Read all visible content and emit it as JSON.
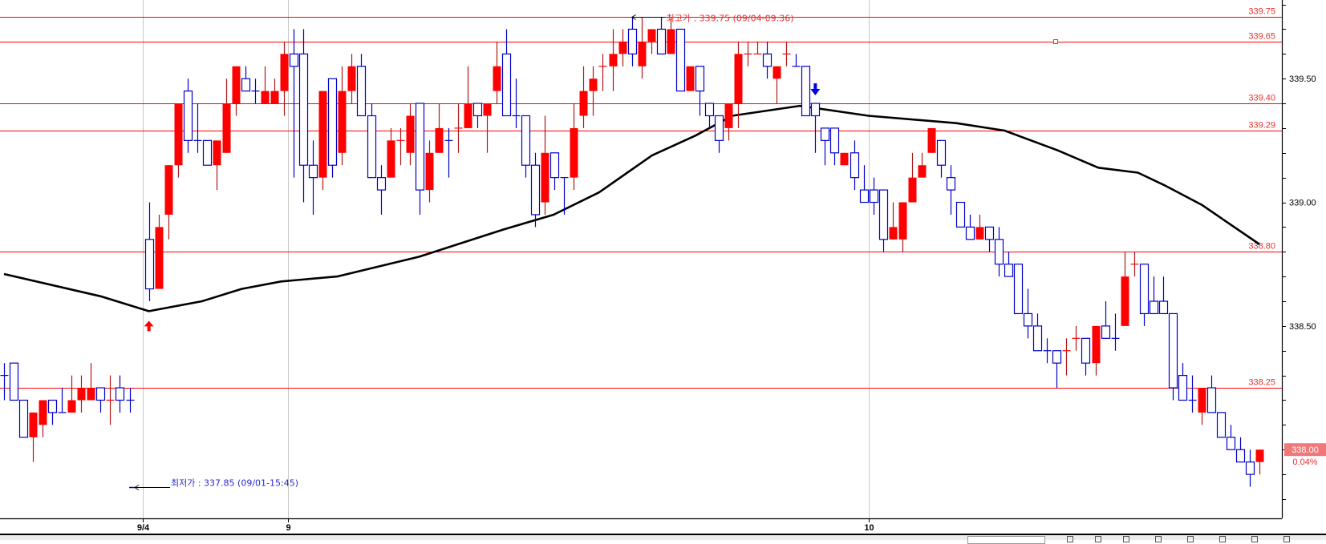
{
  "chart_data": {
    "type": "candlestick",
    "title": "",
    "ylim": [
      337.72,
      339.82
    ],
    "y_ticks": [
      "339.50",
      "339.00",
      "338.50"
    ],
    "y_tick_values": [
      339.5,
      339.0,
      338.5
    ],
    "x_labels": [
      {
        "label": "9/4",
        "at_index": 14.4
      },
      {
        "label": "9",
        "at_index": 29.4
      },
      {
        "label": "10",
        "at_index": 89.5
      }
    ],
    "colors": {
      "up": "#ff0000",
      "up_wick": "#b01818",
      "down": "#0000cc",
      "ma": "#000000",
      "level": "#ff0000",
      "grid": "#c8c8c8",
      "price_box": "#f07878"
    },
    "candles_ohlc": [
      [
        338.3,
        338.35,
        338.2,
        338.3,
        "d"
      ],
      [
        338.35,
        338.35,
        338.2,
        338.2
      ],
      [
        338.2,
        338.2,
        338.05,
        338.05
      ],
      [
        338.05,
        338.15,
        337.95,
        338.15
      ],
      [
        338.1,
        338.2,
        338.05,
        338.2
      ],
      [
        338.2,
        338.2,
        338.1,
        338.15
      ],
      [
        338.15,
        338.25,
        338.15,
        338.15,
        "d"
      ],
      [
        338.15,
        338.3,
        338.15,
        338.2
      ],
      [
        338.2,
        338.3,
        338.15,
        338.25
      ],
      [
        338.2,
        338.35,
        338.2,
        338.25
      ],
      [
        338.25,
        338.25,
        338.15,
        338.2
      ],
      [
        338.2,
        338.3,
        338.1,
        338.2,
        "u"
      ],
      [
        338.25,
        338.3,
        338.15,
        338.2
      ],
      [
        338.2,
        338.25,
        338.15,
        338.2,
        "d"
      ],
      null,
      [
        338.85,
        339.0,
        338.6,
        338.65
      ],
      [
        338.65,
        338.95,
        338.65,
        338.9
      ],
      [
        338.95,
        339.15,
        338.85,
        339.15
      ],
      [
        339.15,
        339.4,
        339.1,
        339.4
      ],
      [
        339.45,
        339.5,
        339.2,
        339.25
      ],
      [
        339.25,
        339.4,
        339.2,
        339.25,
        "d"
      ],
      [
        339.25,
        339.25,
        339.15,
        339.15
      ],
      [
        339.15,
        339.25,
        339.05,
        339.25
      ],
      [
        339.2,
        339.5,
        339.2,
        339.4
      ],
      [
        339.4,
        339.55,
        339.35,
        339.55
      ],
      [
        339.5,
        339.55,
        339.45,
        339.45
      ],
      [
        339.45,
        339.5,
        339.4,
        339.45,
        "d"
      ],
      [
        339.4,
        339.55,
        339.4,
        339.45
      ],
      [
        339.4,
        339.5,
        339.4,
        339.45
      ],
      [
        339.45,
        339.65,
        339.35,
        339.6
      ],
      [
        339.6,
        339.7,
        339.1,
        339.55
      ],
      [
        339.6,
        339.7,
        339.0,
        339.15
      ],
      [
        339.15,
        339.25,
        338.95,
        339.1
      ],
      [
        339.1,
        339.45,
        339.05,
        339.45
      ],
      [
        339.5,
        339.5,
        339.1,
        339.15
      ],
      [
        339.2,
        339.55,
        339.15,
        339.45
      ],
      [
        339.45,
        339.6,
        339.4,
        339.55
      ],
      [
        339.55,
        339.6,
        339.35,
        339.35
      ],
      [
        339.35,
        339.4,
        339.1,
        339.1
      ],
      [
        339.1,
        339.15,
        338.95,
        339.05
      ],
      [
        339.1,
        339.3,
        339.1,
        339.25
      ],
      [
        339.25,
        339.3,
        339.15,
        339.25,
        "u"
      ],
      [
        339.2,
        339.4,
        339.15,
        339.35
      ],
      [
        339.4,
        339.4,
        338.95,
        339.05
      ],
      [
        339.05,
        339.25,
        339.0,
        339.2
      ],
      [
        339.2,
        339.4,
        339.2,
        339.3
      ],
      [
        339.25,
        339.3,
        339.1,
        339.25,
        "d"
      ],
      [
        339.3,
        339.4,
        339.2,
        339.3,
        "u"
      ],
      [
        339.3,
        339.55,
        339.3,
        339.4
      ],
      [
        339.4,
        339.4,
        339.3,
        339.35
      ],
      [
        339.35,
        339.4,
        339.2,
        339.4
      ],
      [
        339.45,
        339.65,
        339.4,
        339.55
      ],
      [
        339.6,
        339.7,
        339.35,
        339.35
      ],
      [
        339.35,
        339.5,
        339.3,
        339.35,
        "d"
      ],
      [
        339.35,
        339.35,
        339.1,
        339.15
      ],
      [
        339.15,
        339.2,
        338.9,
        338.95
      ],
      [
        339.0,
        339.35,
        338.95,
        339.2
      ],
      [
        339.2,
        339.2,
        339.05,
        339.1
      ],
      [
        339.1,
        339.1,
        338.95,
        339.1,
        "d"
      ],
      [
        339.1,
        339.4,
        339.05,
        339.3
      ],
      [
        339.35,
        339.55,
        339.3,
        339.45
      ],
      [
        339.45,
        339.55,
        339.35,
        339.5
      ],
      [
        339.55,
        339.6,
        339.45,
        339.55,
        "u"
      ],
      [
        339.55,
        339.7,
        339.45,
        339.6
      ],
      [
        339.6,
        339.7,
        339.55,
        339.65
      ],
      [
        339.7,
        339.75,
        339.55,
        339.6
      ],
      [
        339.55,
        339.75,
        339.5,
        339.65
      ],
      [
        339.65,
        339.7,
        339.6,
        339.7
      ],
      [
        339.7,
        339.75,
        339.6,
        339.6
      ],
      [
        339.6,
        339.75,
        339.6,
        339.7
      ],
      [
        339.7,
        339.7,
        339.45,
        339.45
      ],
      [
        339.45,
        339.55,
        339.45,
        339.55
      ],
      [
        339.55,
        339.55,
        339.35,
        339.45
      ],
      [
        339.4,
        339.4,
        339.3,
        339.35
      ],
      [
        339.35,
        339.35,
        339.2,
        339.25
      ],
      [
        339.3,
        339.4,
        339.25,
        339.4
      ],
      [
        339.4,
        339.65,
        339.3,
        339.6
      ],
      [
        339.6,
        339.65,
        339.55,
        339.6,
        "u"
      ],
      [
        339.6,
        339.65,
        339.6,
        339.6,
        "u"
      ],
      [
        339.6,
        339.65,
        339.5,
        339.55
      ],
      [
        339.5,
        339.55,
        339.4,
        339.55
      ],
      [
        339.6,
        339.65,
        339.55,
        339.6,
        "u"
      ],
      [
        339.55,
        339.6,
        339.55,
        339.55,
        "d"
      ],
      [
        339.55,
        339.55,
        339.35,
        339.35
      ],
      [
        339.4,
        339.4,
        339.2,
        339.35
      ],
      [
        339.3,
        339.3,
        339.15,
        339.25
      ],
      [
        339.3,
        339.3,
        339.15,
        339.2
      ],
      [
        339.15,
        339.2,
        339.15,
        339.2
      ],
      [
        339.2,
        339.25,
        339.05,
        339.1
      ],
      [
        339.05,
        339.15,
        339.0,
        339.0
      ],
      [
        339.05,
        339.1,
        338.95,
        339.0
      ],
      [
        339.05,
        339.05,
        338.8,
        338.85
      ],
      [
        338.85,
        339.0,
        338.85,
        338.9
      ],
      [
        338.85,
        339.0,
        338.8,
        339.0
      ],
      [
        339.0,
        339.2,
        339.0,
        339.1
      ],
      [
        339.1,
        339.2,
        339.1,
        339.15
      ],
      [
        339.2,
        339.3,
        339.2,
        339.3
      ],
      [
        339.25,
        339.25,
        339.1,
        339.15
      ],
      [
        339.1,
        339.15,
        338.95,
        339.05
      ],
      [
        339.0,
        339.0,
        338.9,
        338.9
      ],
      [
        338.9,
        338.95,
        338.85,
        338.85
      ],
      [
        338.85,
        338.95,
        338.85,
        338.9
      ],
      [
        338.9,
        338.9,
        338.8,
        338.85
      ],
      [
        338.85,
        338.9,
        338.7,
        338.75
      ],
      [
        338.75,
        338.8,
        338.7,
        338.7
      ],
      [
        338.75,
        338.75,
        338.55,
        338.55
      ],
      [
        338.55,
        338.65,
        338.45,
        338.5
      ],
      [
        338.5,
        338.55,
        338.4,
        338.4
      ],
      [
        338.4,
        338.45,
        338.35,
        338.4,
        "d"
      ],
      [
        338.4,
        338.4,
        338.25,
        338.35
      ],
      [
        338.4,
        338.45,
        338.3,
        338.4,
        "u"
      ],
      [
        338.45,
        338.5,
        338.4,
        338.45,
        "u"
      ],
      [
        338.45,
        338.45,
        338.3,
        338.35
      ],
      [
        338.35,
        338.5,
        338.3,
        338.5
      ],
      [
        338.5,
        338.6,
        338.45,
        338.45
      ],
      [
        338.45,
        338.55,
        338.4,
        338.45,
        "d"
      ],
      [
        338.5,
        338.8,
        338.5,
        338.7
      ],
      [
        338.75,
        338.8,
        338.7,
        338.75,
        "u"
      ],
      [
        338.75,
        338.75,
        338.5,
        338.55
      ],
      [
        338.6,
        338.7,
        338.55,
        338.55
      ],
      [
        338.6,
        338.7,
        338.55,
        338.55
      ],
      [
        338.55,
        338.55,
        338.2,
        338.25
      ],
      [
        338.3,
        338.35,
        338.2,
        338.2
      ],
      [
        338.2,
        338.3,
        338.15,
        338.2,
        "d"
      ],
      [
        338.15,
        338.25,
        338.1,
        338.25
      ],
      [
        338.25,
        338.3,
        338.15,
        338.15
      ],
      [
        338.15,
        338.15,
        338.05,
        338.05
      ],
      [
        338.05,
        338.1,
        338.0,
        338.0
      ],
      [
        338.0,
        338.05,
        337.95,
        337.95
      ],
      [
        337.95,
        338.0,
        337.85,
        337.9
      ],
      [
        337.95,
        338.0,
        337.9,
        338.0
      ]
    ],
    "moving_average": [
      [
        0,
        338.71
      ],
      [
        10,
        338.62
      ],
      [
        15,
        338.56
      ],
      [
        20.5,
        338.6
      ],
      [
        24.6,
        338.65
      ],
      [
        28.7,
        338.68
      ],
      [
        34.5,
        338.7
      ],
      [
        43,
        338.78
      ],
      [
        51.7,
        338.89
      ],
      [
        56.9,
        338.95
      ],
      [
        61.6,
        339.04
      ],
      [
        67.1,
        339.19
      ],
      [
        71.6,
        339.27
      ],
      [
        75.4,
        339.35
      ],
      [
        82.4,
        339.39
      ],
      [
        89.5,
        339.35
      ],
      [
        98.6,
        339.32
      ],
      [
        103.6,
        339.29
      ],
      [
        109.1,
        339.21
      ],
      [
        113.3,
        339.14
      ],
      [
        117.4,
        339.12
      ],
      [
        120.1,
        339.07
      ],
      [
        124,
        338.99
      ],
      [
        130,
        338.83
      ]
    ],
    "levels": [
      {
        "label": "339.75",
        "value": 339.75
      },
      {
        "label": "339.65",
        "value": 339.65
      },
      {
        "label": "339.40",
        "value": 339.4
      },
      {
        "label": "339.29",
        "value": 339.29
      },
      {
        "label": "338.80",
        "value": 338.8
      },
      {
        "label": "338.25",
        "value": 338.25
      }
    ],
    "high_annotation": {
      "text": "최고가 : 339.75 (09/04-09:36)",
      "value": 339.75,
      "index": 65
    },
    "low_annotation": {
      "text": "최저가 : 337.85 (09/01-15:45)",
      "value": 337.85
    },
    "signals": [
      {
        "type": "buy",
        "index": 15,
        "color": "#ff0000"
      },
      {
        "type": "sell",
        "index": 84,
        "color": "#0000dd"
      }
    ],
    "current_price": {
      "value": "338.00",
      "change": "0.04%"
    }
  }
}
